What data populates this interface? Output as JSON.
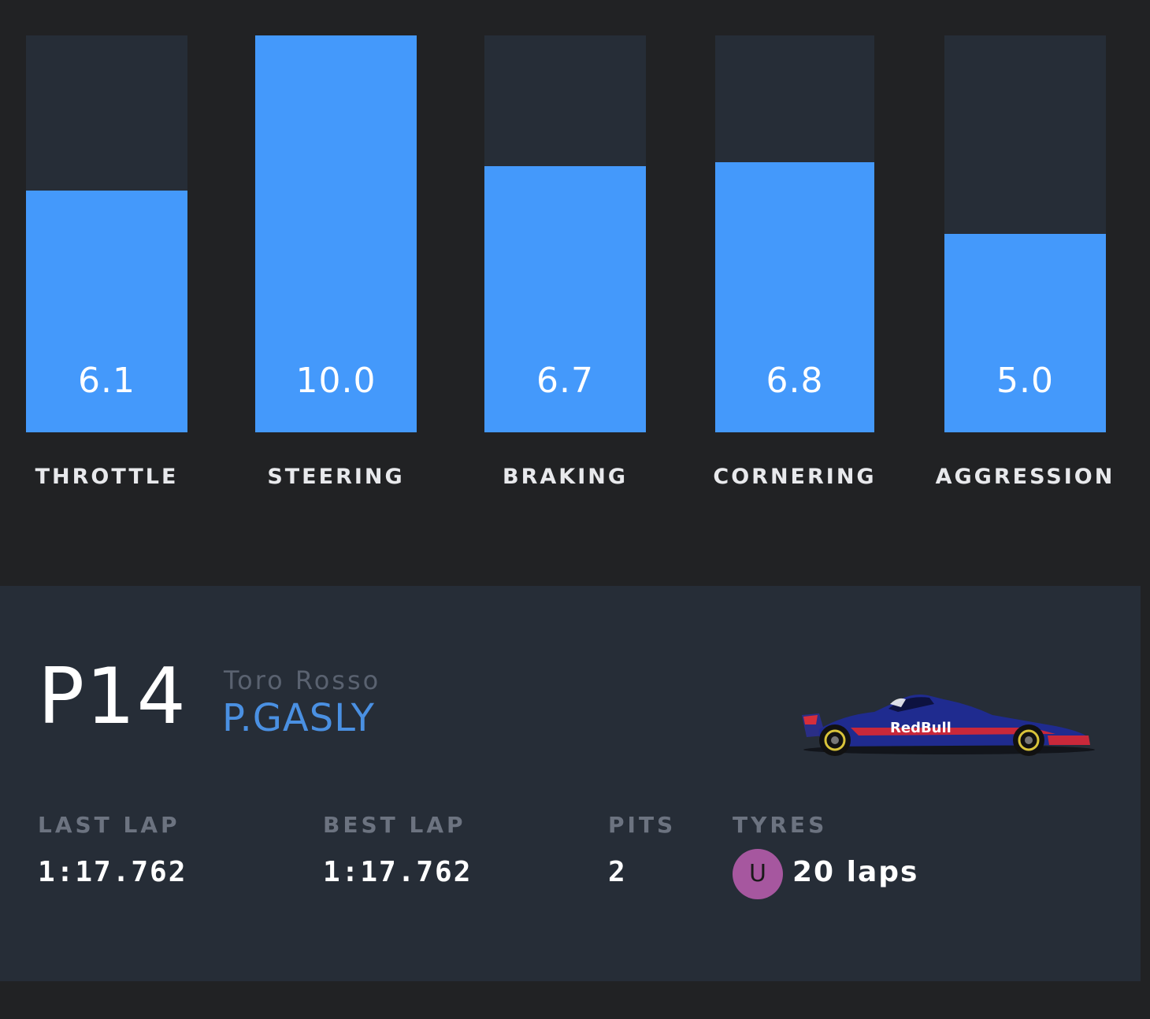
{
  "chart_data": {
    "type": "bar",
    "categories": [
      "THROTTLE",
      "STEERING",
      "BRAKING",
      "CORNERING",
      "AGGRESSION"
    ],
    "values": [
      6.1,
      10.0,
      6.7,
      6.8,
      5.0
    ],
    "value_labels": [
      "6.1",
      "10.0",
      "6.7",
      "6.8",
      "5.0"
    ],
    "ylim": [
      0,
      10
    ],
    "title": "",
    "xlabel": "",
    "ylabel": "",
    "grid": false,
    "bar_color": "#4499fb",
    "track_color": "#262d37"
  },
  "driver_card": {
    "position": "P14",
    "team": "Toro Rosso",
    "driver": "P.GASLY",
    "car_icon": "toro-rosso-car-icon",
    "stats": {
      "last_lap_label": "LAST LAP",
      "last_lap_value": "1:17.762",
      "best_lap_label": "BEST LAP",
      "best_lap_value": "1:17.762",
      "pits_label": "PITS",
      "pits_value": "2",
      "tyres_label": "TYRES",
      "tyre_compound": "U",
      "tyre_color": "#a6579f",
      "tyre_laps": "20 laps"
    }
  }
}
